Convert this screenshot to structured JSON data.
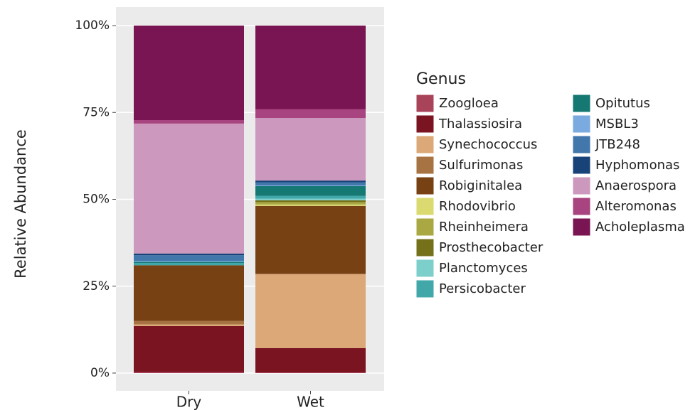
{
  "chart_data": {
    "type": "stacked_bar",
    "y_label": "Relative Abundance",
    "legend_title": "Genus",
    "categories": [
      "Dry",
      "Wet"
    ],
    "ylim": [
      0,
      100
    ],
    "yticks": [
      {
        "value": 0,
        "label": "0%"
      },
      {
        "value": 25,
        "label": "25%"
      },
      {
        "value": 50,
        "label": "50%"
      },
      {
        "value": 75,
        "label": "75%"
      },
      {
        "value": 100,
        "label": "100%"
      }
    ],
    "grid": true,
    "series": [
      {
        "name": "Zoogloea",
        "color": "#a8435a",
        "values": [
          0.3,
          0.2
        ]
      },
      {
        "name": "Thalassiosira",
        "color": "#7a1420",
        "values": [
          13.2,
          7.0
        ]
      },
      {
        "name": "Synechococcus",
        "color": "#dca878",
        "values": [
          0.5,
          21.2
        ]
      },
      {
        "name": "Sulfurimonas",
        "color": "#a87342",
        "values": [
          1.0,
          0.2
        ]
      },
      {
        "name": "Robiginitalea",
        "color": "#774113",
        "values": [
          16,
          19.5
        ]
      },
      {
        "name": "Rhodovibrio",
        "color": "#dada70",
        "values": [
          0,
          0.4
        ]
      },
      {
        "name": "Rheinheimera",
        "color": "#a9a843",
        "values": [
          0,
          0.7
        ]
      },
      {
        "name": "Prosthecobacter",
        "color": "#75701a",
        "values": [
          0,
          0.5
        ]
      },
      {
        "name": "Planctomyces",
        "color": "#7dcfcb",
        "values": [
          0,
          0.5
        ]
      },
      {
        "name": "Persicobacter",
        "color": "#42a7a8",
        "values": [
          0.7,
          0.8
        ]
      },
      {
        "name": "Opitutus",
        "color": "#157873",
        "values": [
          0.3,
          2.8
        ]
      },
      {
        "name": "MSBL3",
        "color": "#7aaadf",
        "values": [
          0.3,
          0.2
        ]
      },
      {
        "name": "JTB248",
        "color": "#4277ac",
        "values": [
          1.6,
          0.9
        ]
      },
      {
        "name": "Hyphomonas",
        "color": "#174379",
        "values": [
          0.5,
          0.5
        ]
      },
      {
        "name": "Anaerospora",
        "color": "#cc98bd",
        "values": [
          37.4,
          18.0
        ]
      },
      {
        "name": "Alteromonas",
        "color": "#a8447f",
        "values": [
          1.0,
          2.5
        ]
      },
      {
        "name": "Acholeplasma",
        "color": "#781552",
        "values": [
          27.2,
          24.1
        ]
      }
    ]
  }
}
